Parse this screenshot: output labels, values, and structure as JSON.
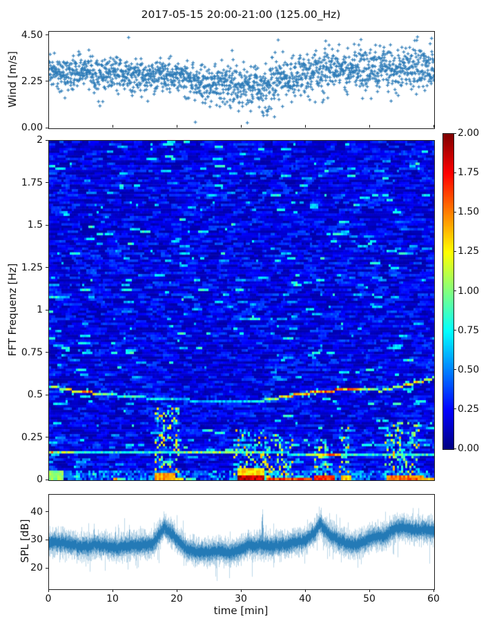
{
  "title": "2017-05-15 20:00-21:00 (125.00_Hz)",
  "chart_data": [
    {
      "id": "wind",
      "type": "scatter",
      "ylabel": "Wind [m/s]",
      "marker": "+",
      "marker_color": "#2e7cb8",
      "xlim": [
        0,
        60
      ],
      "ylim": [
        0,
        4.7
      ],
      "yticks": [
        {
          "v": 0.0,
          "label": "0.00"
        },
        {
          "v": 2.25,
          "label": "2.25"
        },
        {
          "v": 4.5,
          "label": "4.50"
        }
      ],
      "n_points": 1750,
      "mean_keypoints": [
        [
          0,
          2.7
        ],
        [
          3,
          2.65
        ],
        [
          6,
          2.7
        ],
        [
          9,
          2.6
        ],
        [
          12,
          2.65
        ],
        [
          15,
          2.55
        ],
        [
          18,
          2.5
        ],
        [
          21,
          2.4
        ],
        [
          24,
          2.3
        ],
        [
          26,
          2.15
        ],
        [
          28,
          2.05
        ],
        [
          30,
          2.0
        ],
        [
          32,
          1.95
        ],
        [
          34,
          2.1
        ],
        [
          36,
          2.3
        ],
        [
          38,
          2.55
        ],
        [
          40,
          2.7
        ],
        [
          43,
          2.8
        ],
        [
          46,
          2.75
        ],
        [
          49,
          2.85
        ],
        [
          52,
          2.9
        ],
        [
          55,
          2.95
        ],
        [
          58,
          3.0
        ],
        [
          60,
          2.95
        ]
      ],
      "sigma_keypoints": [
        [
          0,
          0.4
        ],
        [
          20,
          0.42
        ],
        [
          27,
          0.5
        ],
        [
          33,
          0.55
        ],
        [
          40,
          0.5
        ],
        [
          50,
          0.52
        ],
        [
          60,
          0.5
        ]
      ],
      "outliers": [
        [
          22.8,
          0.3
        ],
        [
          30.9,
          0.27
        ],
        [
          33.4,
          0.62
        ],
        [
          33.9,
          0.85
        ],
        [
          34.3,
          1.05
        ],
        [
          28.3,
          1.0
        ],
        [
          12.4,
          4.42
        ],
        [
          35.7,
          4.3
        ],
        [
          48.6,
          4.32
        ],
        [
          57.4,
          4.45
        ],
        [
          59.6,
          4.38
        ],
        [
          43.1,
          4.25
        ]
      ]
    },
    {
      "id": "spectrogram",
      "type": "heatmap",
      "ylabel": "FFT Frequenz [Hz]",
      "xlim": [
        0,
        60
      ],
      "ylim": [
        0,
        2
      ],
      "vmin": 0.0,
      "vmax": 2.0,
      "colormap": "jet",
      "yticks": [
        {
          "v": 2.0,
          "label": "2"
        },
        {
          "v": 1.75,
          "label": "1.75"
        },
        {
          "v": 1.5,
          "label": "1.5"
        },
        {
          "v": 1.25,
          "label": "1.25"
        },
        {
          "v": 1.0,
          "label": "1"
        },
        {
          "v": 0.75,
          "label": "0.75"
        },
        {
          "v": 0.5,
          "label": "0.5"
        },
        {
          "v": 0.25,
          "label": "0.25"
        },
        {
          "v": 0.0,
          "label": "0"
        }
      ],
      "background": {
        "base_value": 0.08,
        "spread": 0.32,
        "cyan_fraction": 0.05
      },
      "features": {
        "ridge": {
          "path": [
            [
              0,
              0.555
            ],
            [
              4,
              0.525
            ],
            [
              8,
              0.51
            ],
            [
              12,
              0.495
            ],
            [
              16,
              0.483
            ],
            [
              20,
              0.475
            ],
            [
              24,
              0.468
            ],
            [
              28,
              0.462
            ],
            [
              31,
              0.461
            ],
            [
              34,
              0.473
            ],
            [
              37,
              0.493
            ],
            [
              40,
              0.512
            ],
            [
              43,
              0.525
            ],
            [
              46,
              0.532
            ],
            [
              49,
              0.53
            ],
            [
              52,
              0.528
            ],
            [
              54,
              0.548
            ],
            [
              56,
              0.565
            ],
            [
              58,
              0.582
            ],
            [
              60,
              0.603
            ]
          ],
          "brightness": [
            [
              0,
              1.0
            ],
            [
              2,
              0.9
            ],
            [
              4,
              1.3
            ],
            [
              6,
              1.45
            ],
            [
              8,
              1.05
            ],
            [
              12,
              0.85
            ],
            [
              16,
              0.7
            ],
            [
              20,
              0.62
            ],
            [
              25,
              0.58
            ],
            [
              30,
              0.6
            ],
            [
              33,
              0.8
            ],
            [
              36,
              1.15
            ],
            [
              39,
              1.35
            ],
            [
              42,
              1.5
            ],
            [
              45,
              1.55
            ],
            [
              47,
              1.35
            ],
            [
              50,
              1.0
            ],
            [
              52,
              0.95
            ],
            [
              54,
              1.1
            ],
            [
              56,
              1.25
            ],
            [
              58,
              1.15
            ],
            [
              60,
              1.05
            ]
          ]
        },
        "line": {
          "path": [
            [
              0,
              0.171
            ],
            [
              20,
              0.168
            ],
            [
              32,
              0.162
            ],
            [
              40,
              0.155
            ],
            [
              50,
              0.149
            ],
            [
              60,
              0.145
            ]
          ],
          "brightness": [
            [
              0,
              1.4
            ],
            [
              2,
              1.05
            ],
            [
              6,
              0.8
            ],
            [
              12,
              0.75
            ],
            [
              18,
              0.8
            ],
            [
              22,
              1.0
            ],
            [
              26,
              1.05
            ],
            [
              30,
              0.9
            ],
            [
              34,
              0.7
            ],
            [
              38,
              0.75
            ],
            [
              42,
              1.0
            ],
            [
              44,
              1.45
            ],
            [
              46,
              0.9
            ],
            [
              50,
              0.75
            ],
            [
              54,
              0.8
            ],
            [
              58,
              0.85
            ],
            [
              60,
              0.85
            ]
          ]
        },
        "hot_segments": [
          {
            "t0": 16.6,
            "t1": 19.6,
            "f0": 0.0,
            "f1": 0.05,
            "value": 1.45
          },
          {
            "t0": 19.6,
            "t1": 21.0,
            "f0": 0.0,
            "f1": 0.02,
            "value": 1.3
          },
          {
            "t0": 29.4,
            "t1": 33.6,
            "f0": 0.0,
            "f1": 0.033,
            "value": 1.95
          },
          {
            "t0": 29.4,
            "t1": 33.6,
            "f0": 0.033,
            "f1": 0.068,
            "value": 1.33
          },
          {
            "t0": 34.0,
            "t1": 41.0,
            "f0": 0.0,
            "f1": 0.013,
            "value": 1.7
          },
          {
            "t0": 41.4,
            "t1": 44.6,
            "f0": 0.0,
            "f1": 0.03,
            "value": 1.75
          },
          {
            "t0": 45.6,
            "t1": 47.0,
            "f0": 0.0,
            "f1": 0.03,
            "value": 1.4
          },
          {
            "t0": 52.6,
            "t1": 58.4,
            "f0": 0.0,
            "f1": 0.026,
            "value": 1.55
          },
          {
            "t0": 58.4,
            "t1": 60.0,
            "f0": 0.0,
            "f1": 0.018,
            "value": 1.35
          },
          {
            "t0": 9.9,
            "t1": 10.7,
            "f0": 0.0,
            "f1": 0.013,
            "value": 1.5
          },
          {
            "t0": 0.0,
            "t1": 2.3,
            "f0": 0.0,
            "f1": 0.06,
            "value": 1.05
          }
        ],
        "vertical_streaks": [
          {
            "t0": 16.3,
            "t1": 20.2,
            "f_max": 0.42
          },
          {
            "t0": 28.8,
            "t1": 33.8,
            "f_max": 0.3
          },
          {
            "t0": 33.8,
            "t1": 38.2,
            "f_max": 0.27
          },
          {
            "t0": 41.3,
            "t1": 43.6,
            "f_max": 0.24
          },
          {
            "t0": 45.2,
            "t1": 46.9,
            "f_max": 0.31
          },
          {
            "t0": 52.4,
            "t1": 57.6,
            "f_max": 0.33
          }
        ]
      }
    },
    {
      "id": "spl",
      "type": "line",
      "ylabel": "SPL [dB]",
      "xlabel": "time [min]",
      "line_color": "#1f77b4",
      "xlim": [
        0,
        60
      ],
      "ylim": [
        12.6,
        46.4
      ],
      "yticks": [
        {
          "v": 20,
          "label": "20"
        },
        {
          "v": 30,
          "label": "30"
        },
        {
          "v": 40,
          "label": "40"
        }
      ],
      "xticks": [
        {
          "v": 0,
          "label": "0"
        },
        {
          "v": 10,
          "label": "10"
        },
        {
          "v": 20,
          "label": "20"
        },
        {
          "v": 30,
          "label": "30"
        },
        {
          "v": 40,
          "label": "40"
        },
        {
          "v": 50,
          "label": "50"
        },
        {
          "v": 60,
          "label": "60"
        }
      ],
      "mean_keypoints": [
        [
          0,
          29
        ],
        [
          3,
          28.7
        ],
        [
          5,
          28.5
        ],
        [
          8,
          28.2
        ],
        [
          10,
          28
        ],
        [
          12,
          27.8
        ],
        [
          14,
          27.5
        ],
        [
          16,
          28.5
        ],
        [
          17.8,
          34.5
        ],
        [
          18.4,
          34.0
        ],
        [
          19.5,
          31
        ],
        [
          21,
          27.5
        ],
        [
          23,
          26.5
        ],
        [
          25,
          26
        ],
        [
          28,
          25.5
        ],
        [
          30,
          27
        ],
        [
          31,
          27.8
        ],
        [
          32,
          27.3
        ],
        [
          34,
          28.3
        ],
        [
          36,
          28.8
        ],
        [
          38,
          29
        ],
        [
          40,
          30.5
        ],
        [
          41.5,
          34
        ],
        [
          42.2,
          36.5
        ],
        [
          43.5,
          32
        ],
        [
          45,
          29.5
        ],
        [
          47,
          28.5
        ],
        [
          49,
          29.5
        ],
        [
          50,
          30.5
        ],
        [
          52,
          31.5
        ],
        [
          53.5,
          34.5
        ],
        [
          54.8,
          35.5
        ],
        [
          56,
          34
        ],
        [
          57.5,
          33.3
        ],
        [
          59,
          34
        ],
        [
          60,
          33.5
        ]
      ],
      "spikes": [
        [
          7,
          36.5,
          0.18
        ],
        [
          10.3,
          36.0,
          0.18
        ],
        [
          12.5,
          37.0,
          0.18
        ],
        [
          31,
          36.0,
          0.12
        ],
        [
          33.2,
          42.5,
          0.28
        ]
      ]
    }
  ],
  "colorbar": {
    "vmin": 0.0,
    "vmax": 2.0,
    "colormap": "jet",
    "ticks": [
      {
        "v": 2.0,
        "label": "2.00"
      },
      {
        "v": 1.75,
        "label": "1.75"
      },
      {
        "v": 1.5,
        "label": "1.50"
      },
      {
        "v": 1.25,
        "label": "1.25"
      },
      {
        "v": 1.0,
        "label": "1.00"
      },
      {
        "v": 0.75,
        "label": "0.75"
      },
      {
        "v": 0.5,
        "label": "0.50"
      },
      {
        "v": 0.25,
        "label": "0.25"
      },
      {
        "v": 0.0,
        "label": "0.00"
      }
    ]
  }
}
